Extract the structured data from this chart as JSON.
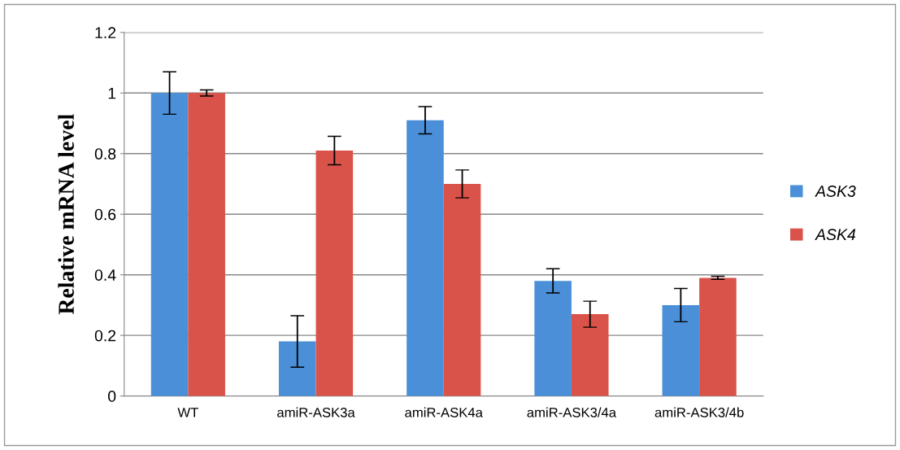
{
  "chart_data": {
    "type": "bar",
    "ylabel": "Relative mRNA level",
    "categories": [
      "WT",
      "amiR-ASK3a",
      "amiR-ASK4a",
      "amiR-ASK3/4a",
      "amiR-ASK3/4b"
    ],
    "series": [
      {
        "name": "ASK3",
        "color": "#4a8fd8",
        "values": [
          1.0,
          0.18,
          0.91,
          0.38,
          0.3
        ],
        "errors": [
          0.07,
          0.085,
          0.045,
          0.04,
          0.055
        ]
      },
      {
        "name": "ASK4",
        "color": "#d9534a",
        "values": [
          1.0,
          0.81,
          0.7,
          0.27,
          0.39
        ],
        "errors": [
          0.01,
          0.047,
          0.046,
          0.043,
          0.005
        ]
      }
    ],
    "ylim": [
      0,
      1.2
    ],
    "yticks": [
      0,
      0.2,
      0.4,
      0.6,
      0.8,
      1,
      1.2
    ],
    "grid": "y",
    "legend": "right"
  }
}
